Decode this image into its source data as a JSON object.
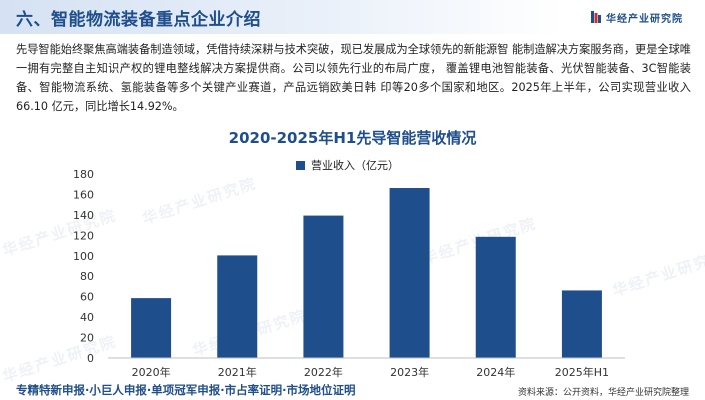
{
  "header": {
    "title": "六、智能物流装备重点企业介绍",
    "brand_name": "华经产业研究院",
    "brand_color": "#1f4e8c"
  },
  "intro": {
    "text": "先导智能始终聚焦高端装备制造领域，凭借持续深耕与技术突破，现已发展成为全球领先的新能源智 能制造解决方案服务商，更是全球唯一拥有完整自主知识产权的锂电整线解决方案提供商。公司以领先行业的布局广度， 覆盖锂电池智能装备、光伏智能装备、3C智能装备、智能物流系统、氢能装备等多个关键产业赛道，产品远销欧美日韩 印等20多个国家和地区。2025年上半年，公司实现营业收入 66.10 亿元，同比增长14.92%。"
  },
  "watermark": "华经产业研究院",
  "chart_data": {
    "type": "bar",
    "title": "2020-2025年H1先导智能营收情况",
    "categories": [
      "2020年",
      "2021年",
      "2022年",
      "2023年",
      "2024年",
      "2025年H1"
    ],
    "series": [
      {
        "name": "营业收入（亿元）",
        "values": [
          58.58,
          100.37,
          139.32,
          166.28,
          118.55,
          66.1
        ],
        "color": "#1f4e8c"
      }
    ],
    "ylim": [
      0,
      180
    ],
    "yticks": [
      "0",
      "20",
      "40",
      "60",
      "80",
      "100",
      "120",
      "140",
      "160",
      "180"
    ],
    "grid": false,
    "legend": "top-center"
  },
  "footer": {
    "left": "专精特新申报·小巨人申报·单项冠军申报·市占率证明·市场地位证明",
    "right": "资料来源：公开资料，华经产业研究院整理"
  }
}
